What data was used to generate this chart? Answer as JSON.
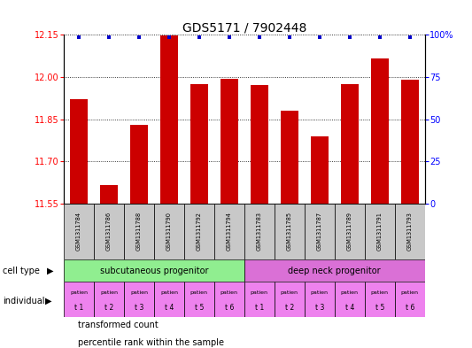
{
  "title": "GDS5171 / 7902448",
  "samples": [
    "GSM1311784",
    "GSM1311786",
    "GSM1311788",
    "GSM1311790",
    "GSM1311792",
    "GSM1311794",
    "GSM1311783",
    "GSM1311785",
    "GSM1311787",
    "GSM1311789",
    "GSM1311791",
    "GSM1311793"
  ],
  "bar_values": [
    11.92,
    11.615,
    11.83,
    12.148,
    11.975,
    11.995,
    11.97,
    11.88,
    11.79,
    11.975,
    12.065,
    11.99
  ],
  "bar_color": "#CC0000",
  "dot_color": "#0000CC",
  "ylim_left": [
    11.55,
    12.15
  ],
  "ylim_right": [
    0,
    100
  ],
  "yticks_left": [
    11.55,
    11.7,
    11.85,
    12.0,
    12.15
  ],
  "yticks_right": [
    0,
    25,
    50,
    75,
    100
  ],
  "cell_type_labels": [
    "subcutaneous progenitor",
    "deep neck progenitor"
  ],
  "cell_type_colors": [
    "#90EE90",
    "#DA70D6"
  ],
  "individual_color": "#EE82EE",
  "sample_box_color": "#C8C8C8",
  "legend_items": [
    {
      "color": "#CC0000",
      "label": "transformed count"
    },
    {
      "color": "#0000CC",
      "label": "percentile rank within the sample"
    }
  ],
  "n_subcutaneous": 6,
  "n_deep": 6
}
